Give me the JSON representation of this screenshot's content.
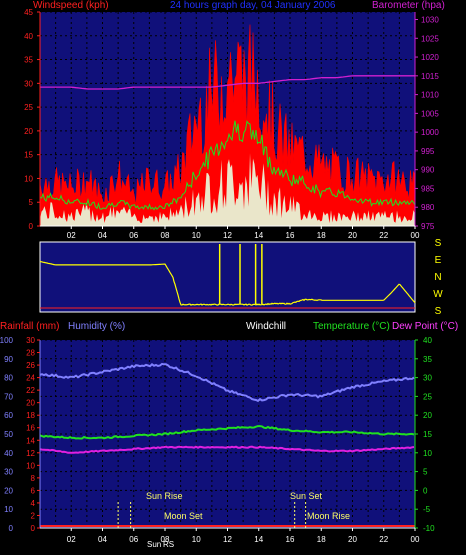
{
  "title": "24 hours graph day, 04 January 2006",
  "colors": {
    "wind_axis": "#ff2020",
    "baro_axis": "#d020d0",
    "title": "#2030ff",
    "wind_gust": "#ff0000",
    "wind_avg": "#20e020",
    "wind_speed": "#e8ffe0",
    "direction": "#ffff00",
    "rain_axis": "#ff2020",
    "humidity": "#8080ff",
    "temperature": "#20e020",
    "dewpoint": "#e020e0",
    "windchill": "#ffffff",
    "plot_bg": "#10107a"
  },
  "hour_labels": [
    "02",
    "04",
    "06",
    "08",
    "10",
    "12",
    "14",
    "16",
    "18",
    "20",
    "22",
    "00"
  ],
  "wind_panel": {
    "left_label": "Windspeed (kph)",
    "right_label": "Barometer (hpa)",
    "wind_ticks": [
      "0",
      "5",
      "10",
      "15",
      "20",
      "25",
      "30",
      "35",
      "40",
      "45"
    ],
    "baro_ticks": [
      "975",
      "980",
      "985",
      "990",
      "995",
      "1000",
      "1005",
      "1010",
      "1015",
      "1020",
      "1025",
      "1030"
    ]
  },
  "direction_panel": {
    "labels": [
      "S",
      "E",
      "N",
      "W",
      "S"
    ]
  },
  "temp_panel": {
    "rain_label": "Rainfall (mm)",
    "humidity_label": "Humidity (%)",
    "windchill_label": "Windchill",
    "temp_label": "Temperature (°C)",
    "dew_label": "Dew Point (°C)",
    "humidity_ticks": [
      "0",
      "10",
      "20",
      "30",
      "40",
      "50",
      "60",
      "70",
      "80",
      "90",
      "100"
    ],
    "rain_ticks": [
      "0",
      "2",
      "4",
      "6",
      "8",
      "10",
      "12",
      "14",
      "16",
      "18",
      "20",
      "22",
      "24",
      "26",
      "28",
      "30"
    ],
    "temp_ticks": [
      "-10",
      "-5",
      "0",
      "5",
      "10",
      "15",
      "20",
      "25",
      "30",
      "35",
      "40"
    ],
    "events": {
      "sun_rise": "Sun Rise",
      "moon_set": "Moon Set",
      "sun_set": "Sun Set",
      "moon_rise": "Moon Rise",
      "bottom_sun": "Sun",
      "bottom_sun_events": "RS"
    }
  },
  "chart_data": [
    {
      "type": "line",
      "title": "24 hours graph day, 04 January 2006",
      "xlabel": "",
      "ylabel": "Windspeed (kph)",
      "y2label": "Barometer (hpa)",
      "ylim": [
        0,
        45
      ],
      "y2lim": [
        975,
        1032
      ],
      "x_hours": [
        1,
        2,
        3,
        4,
        5,
        6,
        7,
        8,
        9,
        10,
        11,
        12,
        13,
        14,
        15,
        16,
        17,
        18,
        19,
        20,
        21,
        22,
        23,
        24
      ],
      "series": [
        {
          "name": "Wind Gust",
          "axis": "left",
          "values": [
            10,
            9,
            11,
            7,
            12,
            7,
            11,
            9,
            13,
            25,
            31,
            36,
            35,
            34,
            23,
            18,
            17,
            14,
            13,
            12,
            11,
            11,
            11,
            9
          ]
        },
        {
          "name": "Wind Average",
          "axis": "left",
          "values": [
            6,
            5,
            5,
            4,
            5,
            4,
            4,
            4,
            6,
            11,
            15,
            19,
            21,
            18,
            12,
            10,
            9,
            7,
            7,
            6,
            5,
            5,
            5,
            5
          ]
        },
        {
          "name": "Wind Speed",
          "axis": "left",
          "values": [
            3,
            2,
            3,
            2,
            3,
            2,
            2,
            2,
            3,
            6,
            8,
            9,
            10,
            9,
            6,
            4,
            3,
            2,
            2,
            2,
            2,
            2,
            2,
            2
          ]
        },
        {
          "name": "Barometer",
          "axis": "right",
          "values": [
            1012,
            1012,
            1011.5,
            1011.5,
            1011.5,
            1012,
            1012,
            1012,
            1012,
            1012,
            1012,
            1012.5,
            1013,
            1013,
            1013.5,
            1014,
            1014,
            1014.5,
            1014.5,
            1015,
            1015,
            1015,
            1015,
            1015
          ]
        }
      ]
    },
    {
      "type": "scatter",
      "ylabel": "Wind direction",
      "categories": [
        "S",
        "E",
        "N",
        "W",
        "S"
      ],
      "x_hours": [
        0,
        1,
        2,
        3,
        4,
        5,
        6,
        7,
        8,
        8.5,
        9,
        10,
        11,
        12,
        13,
        14,
        15,
        16,
        17,
        18,
        19,
        20,
        21,
        22,
        22.5,
        23,
        24
      ],
      "values_deg": [
        270,
        250,
        250,
        250,
        250,
        250,
        250,
        250,
        255,
        180,
        20,
        20,
        20,
        20,
        20,
        20,
        25,
        25,
        50,
        45,
        45,
        45,
        45,
        45,
        90,
        140,
        30
      ]
    },
    {
      "type": "line",
      "ylabel": "Humidity (%)",
      "y2label": "Temperature (°C)",
      "ylim": [
        0,
        100
      ],
      "y2lim": [
        -10,
        40
      ],
      "x_hours": [
        0,
        2,
        4,
        6,
        8,
        10,
        12,
        14,
        16,
        18,
        20,
        22,
        24
      ],
      "series": [
        {
          "name": "Humidity",
          "axis": "left",
          "values": [
            82,
            80,
            83,
            86,
            87,
            81,
            73,
            68,
            71,
            70,
            75,
            78,
            80
          ]
        },
        {
          "name": "Temperature",
          "axis": "right",
          "values": [
            14.5,
            14,
            14,
            14.5,
            15,
            16,
            16.5,
            17,
            16,
            15.5,
            15.5,
            15,
            15
          ]
        },
        {
          "name": "Dew Point",
          "axis": "right",
          "values": [
            11,
            10,
            10.5,
            11,
            11.5,
            11.5,
            11.5,
            11.5,
            11,
            10.5,
            10.5,
            11,
            11.5
          ]
        },
        {
          "name": "Rainfall",
          "axis": "rain",
          "values": [
            0,
            0,
            0,
            0,
            0,
            0,
            0,
            0,
            0,
            0,
            0,
            0,
            0
          ]
        }
      ]
    }
  ]
}
